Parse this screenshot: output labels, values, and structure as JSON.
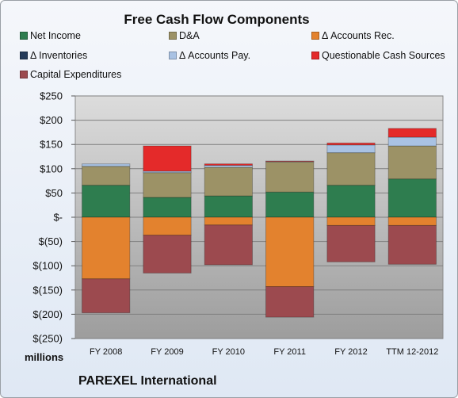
{
  "chart_data": {
    "type": "bar",
    "stacked": true,
    "title": "Free Cash Flow Components",
    "units_label": "millions",
    "categories": [
      "FY 2008",
      "FY 2009",
      "FY 2010",
      "FY 2011",
      "FY 2012",
      "TTM 12-2012"
    ],
    "ylim": [
      -250,
      250
    ],
    "yticks": [
      250,
      200,
      150,
      100,
      50,
      0,
      -50,
      -100,
      -150,
      -200,
      -250
    ],
    "ytick_labels": [
      "$250",
      "$200",
      "$150",
      "$100",
      "$50",
      "$-",
      "$(50)",
      "$(100)",
      "$(150)",
      "$(200)",
      "$(250)"
    ],
    "grid": true,
    "legend_position": "top",
    "series": [
      {
        "name": "Net Income",
        "color": "#2e7d4f",
        "values": [
          66,
          41,
          44,
          52,
          66,
          79
        ]
      },
      {
        "name": "D&A",
        "color": "#9c9266",
        "values": [
          39,
          51,
          59,
          62,
          67,
          68
        ]
      },
      {
        "name": "Δ Accounts Rec.",
        "color": "#e3822e",
        "values": [
          -127,
          -37,
          -16,
          -143,
          -17,
          -17
        ]
      },
      {
        "name": "Δ Inventories",
        "color": "#253b5a",
        "values": [
          0,
          0,
          0,
          0,
          0,
          0
        ]
      },
      {
        "name": "Δ Accounts Pay.",
        "color": "#a9c2e3",
        "values": [
          5,
          3,
          4,
          1,
          16,
          18
        ]
      },
      {
        "name": "Questionable Cash Sources",
        "color": "#e42a2a",
        "values": [
          0,
          52,
          3,
          1,
          4,
          18
        ]
      },
      {
        "name": "Capital Expenditures",
        "color": "#9c4a4f",
        "values": [
          -70,
          -78,
          -82,
          -63,
          -75,
          -80
        ]
      }
    ]
  },
  "company": "PAREXEL International"
}
